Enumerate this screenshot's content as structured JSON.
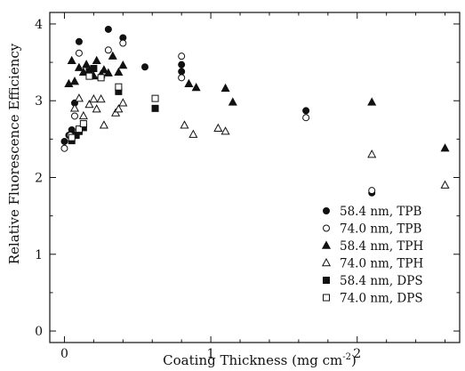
{
  "chart_data": {
    "type": "scatter",
    "xlabel": "Coating Thickness (mg cm",
    "xlabel_superscript": "-2",
    "xlabel_close": ")",
    "ylabel": "Relative Fluorescence Efficiency",
    "xlim": [
      -0.1,
      2.7
    ],
    "ylim": [
      -0.15,
      4.15
    ],
    "xticks": [
      0,
      1,
      2
    ],
    "yticks": [
      0,
      1,
      2,
      3,
      4
    ],
    "grid": false,
    "legend_position": "bottom-right",
    "series": [
      {
        "name": "58.4 nm, TPB",
        "marker": "circle",
        "filled": true,
        "points": [
          [
            0.0,
            2.47
          ],
          [
            0.03,
            2.55
          ],
          [
            0.05,
            2.62
          ],
          [
            0.07,
            2.97
          ],
          [
            0.1,
            3.77
          ],
          [
            0.3,
            3.93
          ],
          [
            0.4,
            3.82
          ],
          [
            0.55,
            3.44
          ],
          [
            0.8,
            3.38
          ],
          [
            0.8,
            3.47
          ],
          [
            1.65,
            2.87
          ],
          [
            2.1,
            1.8
          ]
        ]
      },
      {
        "name": "74.0 nm, TPB",
        "marker": "circle",
        "filled": false,
        "points": [
          [
            0.0,
            2.38
          ],
          [
            0.04,
            2.55
          ],
          [
            0.07,
            2.8
          ],
          [
            0.1,
            3.62
          ],
          [
            0.3,
            3.66
          ],
          [
            0.4,
            3.75
          ],
          [
            0.8,
            3.58
          ],
          [
            0.8,
            3.3
          ],
          [
            1.65,
            2.78
          ],
          [
            2.1,
            1.83
          ]
        ]
      },
      {
        "name": "58.4 nm, TPH",
        "marker": "triangle",
        "filled": true,
        "points": [
          [
            0.03,
            3.22
          ],
          [
            0.05,
            3.52
          ],
          [
            0.07,
            3.25
          ],
          [
            0.1,
            3.43
          ],
          [
            0.13,
            3.37
          ],
          [
            0.15,
            3.47
          ],
          [
            0.17,
            3.38
          ],
          [
            0.2,
            3.32
          ],
          [
            0.22,
            3.52
          ],
          [
            0.25,
            3.34
          ],
          [
            0.27,
            3.4
          ],
          [
            0.3,
            3.36
          ],
          [
            0.33,
            3.58
          ],
          [
            0.37,
            3.37
          ],
          [
            0.4,
            3.46
          ],
          [
            0.85,
            3.22
          ],
          [
            0.9,
            3.17
          ],
          [
            1.1,
            3.16
          ],
          [
            1.15,
            2.98
          ],
          [
            2.1,
            2.98
          ],
          [
            2.6,
            2.38
          ]
        ]
      },
      {
        "name": "74.0 nm, TPH",
        "marker": "triangle",
        "filled": false,
        "points": [
          [
            0.07,
            2.9
          ],
          [
            0.1,
            3.03
          ],
          [
            0.13,
            2.8
          ],
          [
            0.17,
            2.95
          ],
          [
            0.2,
            3.02
          ],
          [
            0.22,
            2.89
          ],
          [
            0.25,
            3.02
          ],
          [
            0.27,
            2.68
          ],
          [
            0.35,
            2.84
          ],
          [
            0.37,
            2.89
          ],
          [
            0.4,
            2.97
          ],
          [
            0.82,
            2.68
          ],
          [
            0.88,
            2.56
          ],
          [
            1.05,
            2.64
          ],
          [
            1.1,
            2.6
          ],
          [
            2.1,
            2.3
          ],
          [
            2.6,
            1.9
          ]
        ]
      },
      {
        "name": "58.4 nm, DPS",
        "marker": "square",
        "filled": true,
        "points": [
          [
            0.05,
            2.48
          ],
          [
            0.08,
            2.55
          ],
          [
            0.1,
            2.6
          ],
          [
            0.13,
            2.65
          ],
          [
            0.17,
            3.38
          ],
          [
            0.2,
            3.42
          ],
          [
            0.37,
            3.12
          ],
          [
            0.62,
            2.9
          ]
        ]
      },
      {
        "name": "74.0 nm, DPS",
        "marker": "square",
        "filled": false,
        "points": [
          [
            0.05,
            2.52
          ],
          [
            0.1,
            2.63
          ],
          [
            0.13,
            2.7
          ],
          [
            0.17,
            3.32
          ],
          [
            0.25,
            3.3
          ],
          [
            0.37,
            3.18
          ],
          [
            0.62,
            3.03
          ]
        ]
      }
    ]
  }
}
